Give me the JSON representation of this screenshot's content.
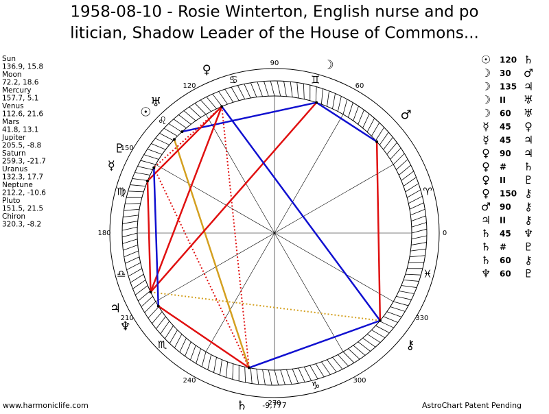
{
  "header": {
    "title_lines": [
      "1958-08-10 - Rosie Winterton, English nurse and po",
      "litician, Shadow Leader of the House of Commons..."
    ]
  },
  "planets": [
    {
      "name": "Sun",
      "glyph": "☉",
      "coords": "136.9, 15.8"
    },
    {
      "name": "Moon",
      "glyph": "☽",
      "coords": "72.2, 18.6"
    },
    {
      "name": "Mercury",
      "glyph": "☿",
      "coords": "157.7, 5.1"
    },
    {
      "name": "Venus",
      "glyph": "♀",
      "coords": "112.6, 21.6"
    },
    {
      "name": "Mars",
      "glyph": "♂",
      "coords": "41.8, 13.1"
    },
    {
      "name": "Jupiter",
      "glyph": "♃",
      "coords": "205.5, -8.8"
    },
    {
      "name": "Saturn",
      "glyph": "♄",
      "coords": "259.3, -21.7"
    },
    {
      "name": "Uranus",
      "glyph": "♅",
      "coords": "132.3, 17.7"
    },
    {
      "name": "Neptune",
      "glyph": "♆",
      "coords": "212.2, -10.6"
    },
    {
      "name": "Pluto",
      "glyph": "♇",
      "coords": "151.5, 21.5"
    },
    {
      "name": "Chiron",
      "glyph": "⚷",
      "coords": "320.3, -8.2"
    }
  ],
  "aspects": [
    {
      "a": "☉",
      "aspect": "120",
      "b": "♄"
    },
    {
      "a": "☽",
      "aspect": "30",
      "b": "♂"
    },
    {
      "a": "☽",
      "aspect": "135",
      "b": "♃"
    },
    {
      "a": "☽",
      "aspect": "II",
      "b": "♅"
    },
    {
      "a": "☽",
      "aspect": "60",
      "b": "♅"
    },
    {
      "a": "☿",
      "aspect": "45",
      "b": "♀"
    },
    {
      "a": "☿",
      "aspect": "45",
      "b": "♃"
    },
    {
      "a": "♀",
      "aspect": "90",
      "b": "♃"
    },
    {
      "a": "♀",
      "aspect": "#",
      "b": "♄"
    },
    {
      "a": "♀",
      "aspect": "II",
      "b": "♇"
    },
    {
      "a": "♀",
      "aspect": "150",
      "b": "⚷"
    },
    {
      "a": "♂",
      "aspect": "90",
      "b": "⚷"
    },
    {
      "a": "♃",
      "aspect": "II",
      "b": "⚷"
    },
    {
      "a": "♄",
      "aspect": "45",
      "b": "♆"
    },
    {
      "a": "♄",
      "aspect": "#",
      "b": "♇"
    },
    {
      "a": "♄",
      "aspect": "60",
      "b": "⚷"
    },
    {
      "a": "♆",
      "aspect": "60",
      "b": "♇"
    }
  ],
  "zodiac": [
    "♈",
    null,
    "♊",
    "♋",
    "♌",
    "♍",
    "♎",
    "♏",
    null,
    "♑",
    null,
    "♓"
  ],
  "degree_labels": [
    0,
    60,
    90,
    120,
    150,
    180,
    210,
    240,
    270,
    300,
    330
  ],
  "harmonic_value": "-9,777",
  "footer": {
    "site": "www.harmoniclife.com",
    "notice": "AstroChart Patent Pending"
  }
}
